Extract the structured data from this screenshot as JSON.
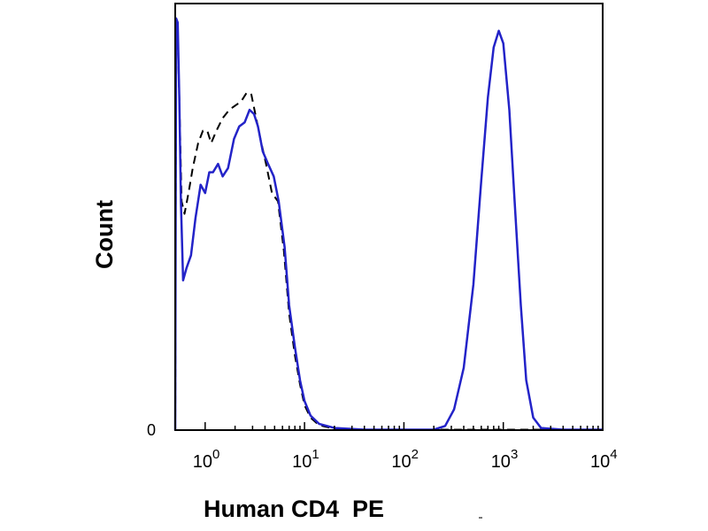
{
  "chart_data": {
    "type": "line",
    "title": "",
    "xlabel": "Human CD4  PE",
    "ylabel": "Count",
    "x_scale": "log",
    "xlim": [
      0.5,
      10000
    ],
    "ylim": [
      0,
      1
    ],
    "x_ticks": [
      {
        "base": "10",
        "exp": "0",
        "value": 1
      },
      {
        "base": "10",
        "exp": "1",
        "value": 10
      },
      {
        "base": "10",
        "exp": "2",
        "value": 100
      },
      {
        "base": "10",
        "exp": "3",
        "value": 1000
      },
      {
        "base": "10",
        "exp": "4",
        "value": 10000
      }
    ],
    "y_ticks": [
      {
        "label": "0",
        "value": 0
      }
    ],
    "grid": false,
    "legend": "none",
    "series": [
      {
        "style": "solid",
        "color": "#2323c8",
        "points": [
          [
            0.5,
            0.0
          ],
          [
            0.51,
            0.99
          ],
          [
            0.53,
            0.98
          ],
          [
            0.55,
            0.8
          ],
          [
            0.57,
            0.55
          ],
          [
            0.6,
            0.36
          ],
          [
            0.65,
            0.39
          ],
          [
            0.72,
            0.42
          ],
          [
            0.8,
            0.51
          ],
          [
            0.9,
            0.59
          ],
          [
            1.0,
            0.57
          ],
          [
            1.1,
            0.62
          ],
          [
            1.2,
            0.62
          ],
          [
            1.35,
            0.64
          ],
          [
            1.5,
            0.61
          ],
          [
            1.7,
            0.63
          ],
          [
            1.95,
            0.7
          ],
          [
            2.2,
            0.73
          ],
          [
            2.5,
            0.74
          ],
          [
            2.8,
            0.77
          ],
          [
            3.1,
            0.76
          ],
          [
            3.4,
            0.73
          ],
          [
            3.8,
            0.67
          ],
          [
            4.3,
            0.64
          ],
          [
            4.9,
            0.61
          ],
          [
            5.5,
            0.55
          ],
          [
            6.3,
            0.44
          ],
          [
            7.0,
            0.3
          ],
          [
            8.0,
            0.2
          ],
          [
            9.0,
            0.12
          ],
          [
            10.0,
            0.07
          ],
          [
            11.5,
            0.035
          ],
          [
            14.0,
            0.015
          ],
          [
            20.0,
            0.005
          ],
          [
            40.0,
            0.001
          ],
          [
            100.0,
            0.001
          ],
          [
            200.0,
            0.001
          ],
          [
            260.0,
            0.01
          ],
          [
            320.0,
            0.05
          ],
          [
            400.0,
            0.15
          ],
          [
            500.0,
            0.35
          ],
          [
            600.0,
            0.6
          ],
          [
            700.0,
            0.8
          ],
          [
            800.0,
            0.92
          ],
          [
            900.0,
            0.96
          ],
          [
            1000.0,
            0.93
          ],
          [
            1150.0,
            0.77
          ],
          [
            1300.0,
            0.55
          ],
          [
            1500.0,
            0.3
          ],
          [
            1700.0,
            0.12
          ],
          [
            2000.0,
            0.03
          ],
          [
            2400.0,
            0.005
          ],
          [
            4000.0,
            0.001
          ],
          [
            10000.0,
            0.001
          ]
        ]
      },
      {
        "style": "dashed",
        "color": "#000000",
        "points": [
          [
            0.5,
            0.0
          ],
          [
            0.51,
            0.98
          ],
          [
            0.53,
            0.95
          ],
          [
            0.55,
            0.8
          ],
          [
            0.58,
            0.55
          ],
          [
            0.62,
            0.52
          ],
          [
            0.68,
            0.57
          ],
          [
            0.75,
            0.63
          ],
          [
            0.85,
            0.69
          ],
          [
            0.95,
            0.72
          ],
          [
            1.05,
            0.72
          ],
          [
            1.15,
            0.69
          ],
          [
            1.3,
            0.72
          ],
          [
            1.5,
            0.75
          ],
          [
            1.75,
            0.77
          ],
          [
            2.0,
            0.78
          ],
          [
            2.3,
            0.79
          ],
          [
            2.6,
            0.81
          ],
          [
            2.9,
            0.81
          ],
          [
            3.2,
            0.76
          ],
          [
            3.6,
            0.7
          ],
          [
            4.1,
            0.64
          ],
          [
            4.7,
            0.57
          ],
          [
            5.4,
            0.55
          ],
          [
            6.2,
            0.43
          ],
          [
            7.0,
            0.28
          ],
          [
            8.0,
            0.18
          ],
          [
            9.0,
            0.11
          ],
          [
            10.0,
            0.06
          ],
          [
            11.5,
            0.03
          ],
          [
            14.0,
            0.012
          ],
          [
            20.0,
            0.003
          ],
          [
            40.0,
            0.001
          ],
          [
            10000.0,
            0.001
          ]
        ]
      }
    ]
  }
}
